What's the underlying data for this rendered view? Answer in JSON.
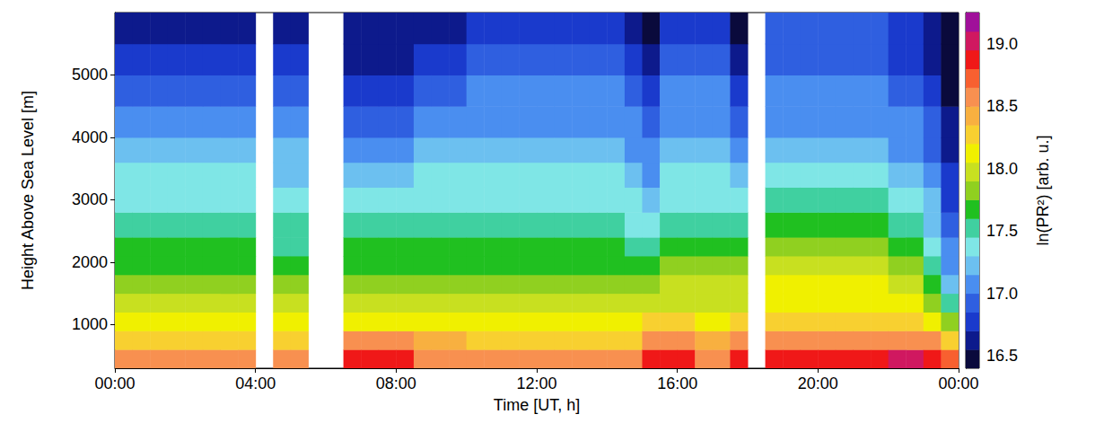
{
  "chart_data": {
    "type": "heatmap",
    "xlabel": "Time [UT, h]",
    "ylabel": "Height Above Sea Level [m]",
    "xlim": [
      0,
      24
    ],
    "xticks": [
      {
        "value": 0,
        "label": "00:00"
      },
      {
        "value": 4,
        "label": "04:00"
      },
      {
        "value": 8,
        "label": "08:00"
      },
      {
        "value": 12,
        "label": "12:00"
      },
      {
        "value": 16,
        "label": "16:00"
      },
      {
        "value": 20,
        "label": "20:00"
      },
      {
        "value": 24,
        "label": "00:00"
      }
    ],
    "ylim": [
      300,
      6000
    ],
    "yticks": [
      1000,
      2000,
      3000,
      4000,
      5000
    ],
    "x": [
      0,
      0.5,
      1,
      1.5,
      2,
      2.5,
      3,
      3.5,
      4,
      4.5,
      5,
      5.5,
      6,
      6.5,
      7,
      7.5,
      8,
      8.5,
      9,
      9.5,
      10,
      10.5,
      11,
      11.5,
      12,
      12.5,
      13,
      13.5,
      14,
      14.5,
      15,
      15.5,
      16,
      16.5,
      17,
      17.5,
      18,
      18.5,
      19,
      19.5,
      20,
      20.5,
      21,
      21.5,
      22,
      22.5,
      23,
      23.5
    ],
    "heights": [
      300,
      600,
      900,
      1200,
      1500,
      1800,
      2100,
      2400,
      2800,
      3200,
      3600,
      4000,
      4500,
      5000,
      5500,
      6000
    ],
    "cells": [
      [
        18.55,
        18.3,
        18.1,
        17.95,
        17.85,
        17.7,
        17.6,
        17.45,
        17.35,
        17.3,
        17.2,
        17.05,
        16.9,
        16.75,
        16.6
      ],
      [
        18.55,
        18.3,
        18.1,
        17.95,
        17.85,
        17.7,
        17.6,
        17.45,
        17.35,
        17.3,
        17.2,
        17.05,
        16.9,
        16.75,
        16.6
      ],
      [
        18.55,
        18.3,
        18.1,
        17.95,
        17.85,
        17.7,
        17.6,
        17.45,
        17.35,
        17.3,
        17.2,
        17.05,
        16.9,
        16.75,
        16.6
      ],
      [
        18.55,
        18.3,
        18.1,
        17.95,
        17.85,
        17.7,
        17.6,
        17.45,
        17.35,
        17.3,
        17.2,
        17.05,
        16.9,
        16.75,
        16.6
      ],
      [
        18.55,
        18.3,
        18.1,
        17.95,
        17.85,
        17.7,
        17.6,
        17.45,
        17.35,
        17.3,
        17.2,
        17.05,
        16.9,
        16.75,
        16.6
      ],
      [
        18.55,
        18.3,
        18.1,
        17.95,
        17.85,
        17.7,
        17.6,
        17.45,
        17.35,
        17.3,
        17.2,
        17.05,
        16.9,
        16.75,
        16.6
      ],
      [
        18.55,
        18.3,
        18.1,
        17.95,
        17.85,
        17.7,
        17.6,
        17.45,
        17.35,
        17.3,
        17.2,
        17.05,
        16.9,
        16.75,
        16.6
      ],
      [
        18.55,
        18.3,
        18.1,
        17.95,
        17.85,
        17.7,
        17.6,
        17.45,
        17.35,
        17.3,
        17.15,
        17.0,
        16.85,
        16.7,
        16.55
      ],
      null,
      [
        18.5,
        18.3,
        18.1,
        17.95,
        17.8,
        17.7,
        17.55,
        17.45,
        17.35,
        17.25,
        17.15,
        17.0,
        16.85,
        16.7,
        16.6
      ],
      [
        18.5,
        18.3,
        18.1,
        17.95,
        17.8,
        17.7,
        17.55,
        17.45,
        17.35,
        17.25,
        17.15,
        17.0,
        16.85,
        16.7,
        16.6
      ],
      null,
      null,
      [
        18.8,
        18.5,
        18.15,
        17.95,
        17.85,
        17.7,
        17.6,
        17.45,
        17.35,
        17.25,
        17.1,
        16.95,
        16.8,
        16.65,
        16.55
      ],
      [
        18.8,
        18.5,
        18.15,
        17.95,
        17.85,
        17.7,
        17.6,
        17.45,
        17.35,
        17.25,
        17.1,
        16.95,
        16.8,
        16.65,
        16.55
      ],
      [
        18.8,
        18.5,
        18.15,
        17.95,
        17.85,
        17.7,
        17.6,
        17.45,
        17.35,
        17.25,
        17.1,
        16.95,
        16.8,
        16.65,
        16.55
      ],
      [
        18.8,
        18.5,
        18.15,
        17.95,
        17.85,
        17.7,
        17.6,
        17.45,
        17.35,
        17.25,
        17.1,
        16.95,
        16.8,
        16.65,
        16.55
      ],
      [
        18.55,
        18.35,
        18.1,
        17.95,
        17.85,
        17.7,
        17.6,
        17.45,
        17.35,
        17.3,
        17.2,
        17.1,
        16.95,
        16.8,
        16.65
      ],
      [
        18.55,
        18.35,
        18.1,
        17.95,
        17.85,
        17.7,
        17.6,
        17.45,
        17.35,
        17.3,
        17.2,
        17.1,
        16.95,
        16.8,
        16.65
      ],
      [
        18.55,
        18.35,
        18.1,
        17.95,
        17.85,
        17.7,
        17.6,
        17.45,
        17.35,
        17.3,
        17.2,
        17.1,
        16.95,
        16.8,
        16.65
      ],
      [
        18.5,
        18.3,
        18.1,
        17.95,
        17.85,
        17.7,
        17.6,
        17.5,
        17.4,
        17.3,
        17.2,
        17.1,
        17.0,
        16.85,
        16.7
      ],
      [
        18.5,
        18.3,
        18.1,
        17.95,
        17.85,
        17.7,
        17.6,
        17.5,
        17.4,
        17.3,
        17.2,
        17.1,
        17.0,
        16.85,
        16.7
      ],
      [
        18.5,
        18.3,
        18.1,
        17.95,
        17.85,
        17.7,
        17.6,
        17.5,
        17.4,
        17.3,
        17.2,
        17.1,
        17.0,
        16.85,
        16.7
      ],
      [
        18.5,
        18.3,
        18.1,
        17.95,
        17.85,
        17.7,
        17.6,
        17.5,
        17.4,
        17.3,
        17.2,
        17.1,
        17.0,
        16.85,
        16.7
      ],
      [
        18.5,
        18.3,
        18.1,
        17.95,
        17.85,
        17.7,
        17.6,
        17.5,
        17.4,
        17.3,
        17.2,
        17.1,
        17.0,
        16.85,
        16.7
      ],
      [
        18.5,
        18.3,
        18.1,
        17.95,
        17.85,
        17.7,
        17.6,
        17.5,
        17.4,
        17.3,
        17.2,
        17.1,
        17.0,
        16.85,
        16.7
      ],
      [
        18.5,
        18.3,
        18.1,
        17.95,
        17.85,
        17.7,
        17.6,
        17.5,
        17.4,
        17.3,
        17.2,
        17.1,
        17.0,
        16.85,
        16.7
      ],
      [
        18.5,
        18.3,
        18.1,
        17.95,
        17.85,
        17.7,
        17.6,
        17.5,
        17.4,
        17.3,
        17.2,
        17.1,
        17.0,
        16.85,
        16.7
      ],
      [
        18.5,
        18.3,
        18.1,
        17.95,
        17.85,
        17.7,
        17.6,
        17.5,
        17.4,
        17.3,
        17.2,
        17.1,
        17.0,
        16.85,
        16.7
      ],
      [
        18.5,
        18.3,
        18.05,
        17.9,
        17.8,
        17.65,
        17.5,
        17.4,
        17.3,
        17.2,
        17.1,
        17.0,
        16.85,
        16.7,
        16.6
      ],
      [
        18.8,
        18.5,
        18.2,
        18.0,
        17.85,
        17.7,
        17.55,
        17.4,
        17.25,
        17.1,
        17.0,
        16.85,
        16.7,
        16.6,
        16.5
      ],
      [
        18.8,
        18.5,
        18.2,
        18.0,
        17.9,
        17.75,
        17.6,
        17.5,
        17.35,
        17.3,
        17.2,
        17.1,
        17.0,
        16.9,
        16.75
      ],
      [
        18.8,
        18.5,
        18.2,
        18.0,
        17.9,
        17.75,
        17.6,
        17.5,
        17.35,
        17.3,
        17.2,
        17.1,
        17.0,
        16.9,
        16.75
      ],
      [
        18.55,
        18.4,
        18.15,
        18.0,
        17.9,
        17.75,
        17.6,
        17.5,
        17.35,
        17.3,
        17.2,
        17.1,
        17.0,
        16.9,
        16.75
      ],
      [
        18.55,
        18.4,
        18.15,
        18.0,
        17.9,
        17.75,
        17.6,
        17.5,
        17.35,
        17.3,
        17.2,
        17.1,
        17.0,
        16.9,
        16.75
      ],
      [
        18.8,
        18.5,
        18.2,
        18.0,
        17.9,
        17.75,
        17.6,
        17.45,
        17.3,
        17.2,
        17.05,
        16.9,
        16.7,
        16.55,
        16.5
      ],
      null,
      [
        18.85,
        18.55,
        18.3,
        18.15,
        18.05,
        17.9,
        17.75,
        17.6,
        17.45,
        17.35,
        17.2,
        17.1,
        17.0,
        16.95,
        16.85
      ],
      [
        18.85,
        18.55,
        18.3,
        18.15,
        18.05,
        17.9,
        17.75,
        17.6,
        17.45,
        17.35,
        17.2,
        17.1,
        17.0,
        16.95,
        16.85
      ],
      [
        18.85,
        18.55,
        18.3,
        18.15,
        18.05,
        17.9,
        17.75,
        17.6,
        17.45,
        17.35,
        17.2,
        17.1,
        17.0,
        16.95,
        16.85
      ],
      [
        18.85,
        18.55,
        18.3,
        18.15,
        18.05,
        17.9,
        17.75,
        17.6,
        17.45,
        17.35,
        17.2,
        17.1,
        17.0,
        16.95,
        16.85
      ],
      [
        18.85,
        18.55,
        18.3,
        18.15,
        18.05,
        17.9,
        17.75,
        17.6,
        17.45,
        17.35,
        17.2,
        17.1,
        17.0,
        16.95,
        16.85
      ],
      [
        18.85,
        18.55,
        18.3,
        18.15,
        18.05,
        17.9,
        17.75,
        17.6,
        17.45,
        17.35,
        17.2,
        17.1,
        17.0,
        16.95,
        16.85
      ],
      [
        18.85,
        18.55,
        18.3,
        18.15,
        18.05,
        17.9,
        17.75,
        17.6,
        17.45,
        17.35,
        17.2,
        17.1,
        17.0,
        16.95,
        16.85
      ],
      [
        19.0,
        18.6,
        18.3,
        18.1,
        17.95,
        17.8,
        17.65,
        17.5,
        17.35,
        17.25,
        17.1,
        17.0,
        16.9,
        16.8,
        16.7
      ],
      [
        19.0,
        18.6,
        18.3,
        18.1,
        17.95,
        17.8,
        17.65,
        17.5,
        17.35,
        17.25,
        17.1,
        17.0,
        16.9,
        16.8,
        16.7
      ],
      [
        18.9,
        18.5,
        18.1,
        17.85,
        17.6,
        17.45,
        17.35,
        17.25,
        17.15,
        17.05,
        16.95,
        16.85,
        16.75,
        16.65,
        16.6
      ],
      [
        18.7,
        18.3,
        17.8,
        17.45,
        17.2,
        17.1,
        17.0,
        16.9,
        16.8,
        16.7,
        16.6,
        16.55,
        16.5,
        16.45,
        16.45
      ]
    ],
    "colorbar": {
      "label": "ln(PR²) [arb. u.]",
      "range": [
        16.4,
        19.25
      ],
      "ticks": [
        16.5,
        {
          "value": 17,
          "label": "17.0"
        },
        17.5,
        {
          "value": 18,
          "label": "18.0"
        },
        18.5,
        {
          "value": 19,
          "label": "19.0"
        }
      ],
      "levels": [
        16.4,
        16.55,
        16.7,
        16.85,
        17.0,
        17.15,
        17.3,
        17.45,
        17.6,
        17.75,
        17.9,
        18.05,
        18.2,
        18.35,
        18.5,
        18.65,
        18.8,
        18.95,
        19.1,
        19.25
      ],
      "colors": [
        "#0a0a3c",
        "#0d1a8c",
        "#1a3acc",
        "#2f5fe0",
        "#4a8ef0",
        "#6cc0f0",
        "#7fe6e6",
        "#40d0a0",
        "#20c020",
        "#90d020",
        "#c8e020",
        "#f0f000",
        "#f8d030",
        "#f8b040",
        "#f89050",
        "#f86030",
        "#f01818",
        "#d01860",
        "#a0109a"
      ]
    }
  }
}
